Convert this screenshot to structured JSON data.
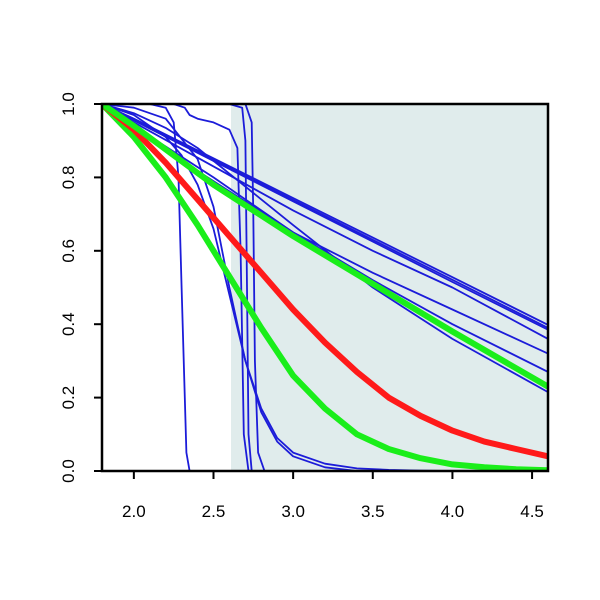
{
  "chart_data": {
    "type": "line",
    "title": "",
    "xlabel": "",
    "ylabel": "",
    "xlim": [
      1.8,
      4.6
    ],
    "ylim": [
      0.0,
      1.0
    ],
    "x_ticks": [
      2.0,
      2.5,
      3.0,
      3.5,
      4.0,
      4.5
    ],
    "x_tick_labels": [
      "2.0",
      "2.5",
      "3.0",
      "3.5",
      "4.0",
      "4.5"
    ],
    "y_ticks": [
      0.0,
      0.2,
      0.4,
      0.6,
      0.8,
      1.0
    ],
    "y_tick_labels": [
      "0.0",
      "0.2",
      "0.4",
      "0.6",
      "0.8",
      "1.0"
    ],
    "grid": false,
    "legend": "none",
    "shaded_region": {
      "x_start": 2.61,
      "x_end": 4.6,
      "color": "#e0ecec"
    },
    "colors": {
      "blue": "#1c1cd9",
      "red": "#ff1a1a",
      "green": "#1aee1a",
      "axis": "#000000"
    },
    "series": [
      {
        "color": "blue",
        "width": "thin",
        "x": [
          1.8,
          2.0,
          2.1,
          2.2,
          2.25,
          2.28,
          2.3,
          2.32,
          2.33,
          2.35,
          2.4,
          4.6
        ],
        "y": [
          1.0,
          1.0,
          1.0,
          0.99,
          0.95,
          0.8,
          0.5,
          0.2,
          0.05,
          0.0,
          0.0,
          0.0
        ]
      },
      {
        "color": "blue",
        "width": "thin",
        "x": [
          1.8,
          2.25,
          2.32,
          2.35,
          2.4,
          2.5,
          2.6,
          2.65,
          2.67,
          2.69,
          2.72,
          4.6
        ],
        "y": [
          1.0,
          1.0,
          0.99,
          0.97,
          0.96,
          0.95,
          0.93,
          0.88,
          0.6,
          0.1,
          0.0,
          0.0
        ]
      },
      {
        "color": "blue",
        "width": "thin",
        "x": [
          1.8,
          2.4,
          2.6,
          2.68,
          2.7,
          2.71,
          2.72,
          2.74,
          4.6
        ],
        "y": [
          1.0,
          1.0,
          1.0,
          0.99,
          0.9,
          0.5,
          0.1,
          0.0,
          0.0
        ]
      },
      {
        "color": "blue",
        "width": "thin",
        "x": [
          1.8,
          2.5,
          2.7,
          2.74,
          2.75,
          2.76,
          2.78,
          2.82,
          4.6
        ],
        "y": [
          1.0,
          1.0,
          1.0,
          0.95,
          0.7,
          0.3,
          0.05,
          0.0,
          0.0
        ]
      },
      {
        "color": "blue",
        "width": "thin",
        "x": [
          1.8,
          2.0,
          2.2,
          2.4,
          2.5,
          2.6,
          2.7,
          2.8,
          2.9,
          3.0,
          3.2,
          3.4,
          3.6,
          4.6
        ],
        "y": [
          1.0,
          0.99,
          0.96,
          0.85,
          0.72,
          0.5,
          0.3,
          0.16,
          0.08,
          0.04,
          0.01,
          0.0,
          0.0,
          0.0
        ]
      },
      {
        "color": "blue",
        "width": "thin",
        "x": [
          1.8,
          2.0,
          2.2,
          2.3,
          2.4,
          2.5,
          2.6,
          2.7,
          2.8,
          2.9,
          3.0,
          3.2,
          3.4,
          3.6,
          3.8,
          4.0,
          4.6
        ],
        "y": [
          1.0,
          0.97,
          0.91,
          0.86,
          0.78,
          0.66,
          0.48,
          0.3,
          0.17,
          0.09,
          0.05,
          0.02,
          0.007,
          0.003,
          0.001,
          0.0,
          0.0
        ]
      },
      {
        "color": "blue",
        "width": "thin",
        "x": [
          1.8,
          2.0,
          2.2,
          2.4,
          2.6,
          2.8,
          3.0,
          3.5,
          4.0,
          4.6
        ],
        "y": [
          1.0,
          0.975,
          0.935,
          0.88,
          0.81,
          0.74,
          0.67,
          0.5,
          0.36,
          0.215
        ]
      },
      {
        "color": "blue",
        "width": "thin",
        "x": [
          1.8,
          2.0,
          2.5,
          3.0,
          3.5,
          4.0,
          4.6
        ],
        "y": [
          1.0,
          0.94,
          0.8,
          0.65,
          0.52,
          0.4,
          0.27
        ]
      },
      {
        "color": "blue",
        "width": "thin",
        "x": [
          1.8,
          2.0,
          2.5,
          3.0,
          3.5,
          4.0,
          4.6
        ],
        "y": [
          1.0,
          0.93,
          0.79,
          0.65,
          0.54,
          0.44,
          0.32
        ]
      },
      {
        "color": "blue",
        "width": "thin",
        "x": [
          1.8,
          2.0,
          2.5,
          3.0,
          3.5,
          4.0,
          4.6
        ],
        "y": [
          1.0,
          0.95,
          0.83,
          0.71,
          0.6,
          0.5,
          0.36
        ]
      },
      {
        "color": "blue",
        "width": "thin",
        "x": [
          1.8,
          2.0,
          2.5,
          3.0,
          3.5,
          4.0,
          4.6
        ],
        "y": [
          1.0,
          0.955,
          0.845,
          0.735,
          0.625,
          0.515,
          0.385
        ]
      },
      {
        "color": "blue",
        "width": "thin",
        "x": [
          1.8,
          2.0,
          2.5,
          3.0,
          3.5,
          4.0,
          4.6
        ],
        "y": [
          1.0,
          0.957,
          0.848,
          0.739,
          0.63,
          0.521,
          0.39
        ]
      },
      {
        "color": "blue",
        "width": "thin",
        "x": [
          1.8,
          2.0,
          2.5,
          3.0,
          3.5,
          4.0,
          4.6
        ],
        "y": [
          1.0,
          0.96,
          0.852,
          0.744,
          0.636,
          0.528,
          0.398
        ]
      },
      {
        "color": "green",
        "width": "thick",
        "x": [
          1.8,
          2.0,
          2.2,
          2.4,
          2.6,
          2.8,
          3.0,
          3.2,
          3.4,
          3.6,
          3.8,
          4.0,
          4.2,
          4.4,
          4.6
        ],
        "y": [
          1.0,
          0.91,
          0.8,
          0.67,
          0.53,
          0.39,
          0.26,
          0.17,
          0.1,
          0.06,
          0.035,
          0.018,
          0.01,
          0.005,
          0.002
        ]
      },
      {
        "color": "red",
        "width": "thick",
        "x": [
          1.8,
          2.0,
          2.2,
          2.4,
          2.6,
          2.8,
          3.0,
          3.2,
          3.4,
          3.6,
          3.8,
          4.0,
          4.2,
          4.4,
          4.6
        ],
        "y": [
          1.0,
          0.93,
          0.84,
          0.74,
          0.64,
          0.54,
          0.44,
          0.35,
          0.27,
          0.2,
          0.15,
          0.11,
          0.08,
          0.06,
          0.04
        ]
      },
      {
        "color": "green",
        "width": "thick",
        "x": [
          1.8,
          2.0,
          2.5,
          3.0,
          3.5,
          4.0,
          4.6
        ],
        "y": [
          1.0,
          0.94,
          0.78,
          0.64,
          0.51,
          0.38,
          0.23
        ]
      }
    ]
  }
}
